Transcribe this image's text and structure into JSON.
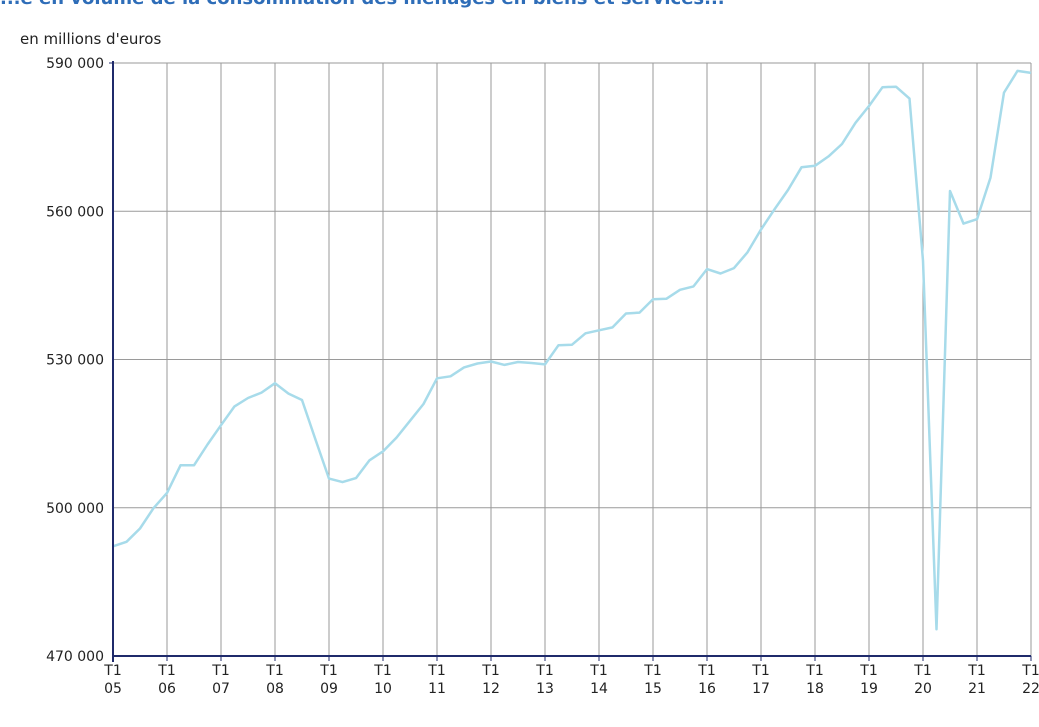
{
  "chart_data": {
    "type": "line",
    "title": "...e en volume de la consommation des ménages en biens et services...",
    "ylabel": "en millions d'euros",
    "ylim": [
      470000,
      590000
    ],
    "yticks": [
      "590 000",
      "560 000",
      "530 000",
      "500 000",
      "470 000"
    ],
    "ytick_values": [
      590000,
      560000,
      530000,
      500000,
      470000
    ],
    "grid": true,
    "x_labels": [
      [
        "T1",
        "05"
      ],
      [
        "T1",
        "06"
      ],
      [
        "T1",
        "07"
      ],
      [
        "T1",
        "08"
      ],
      [
        "T1",
        "09"
      ],
      [
        "T1",
        "10"
      ],
      [
        "T1",
        "11"
      ],
      [
        "T1",
        "12"
      ],
      [
        "T1",
        "13"
      ],
      [
        "T1",
        "14"
      ],
      [
        "T1",
        "15"
      ],
      [
        "T1",
        "16"
      ],
      [
        "T1",
        "17"
      ],
      [
        "T1",
        "18"
      ],
      [
        "T1",
        "19"
      ],
      [
        "T1",
        "20"
      ],
      [
        "T1",
        "21"
      ],
      [
        "T1",
        "22"
      ]
    ],
    "line_color": "#a7dbea",
    "axis_color": "#1f2a6b",
    "grid_color": "#9a9a9a",
    "series": [
      {
        "values": [
          492200,
          493100,
          495800,
          499900,
          503000,
          508600,
          508600,
          512800,
          516700,
          520500,
          522200,
          523300,
          525200,
          523100,
          521800,
          513800,
          505900,
          505200,
          506000,
          509600,
          511400,
          514200,
          517600,
          521000,
          526200,
          526600,
          528400,
          529200,
          529600,
          528900,
          529500,
          529300,
          529000,
          532900,
          533000,
          535300,
          535900,
          536500,
          539300,
          539500,
          542200,
          542300,
          544100,
          544800,
          548300,
          547400,
          548500,
          551700,
          556300,
          560400,
          564300,
          568900,
          569200,
          571100,
          573600,
          577900,
          581300,
          585100,
          585200,
          582800,
          550000,
          475400,
          564100,
          557500,
          558400,
          566800,
          584000,
          588400,
          588000
        ]
      }
    ]
  }
}
